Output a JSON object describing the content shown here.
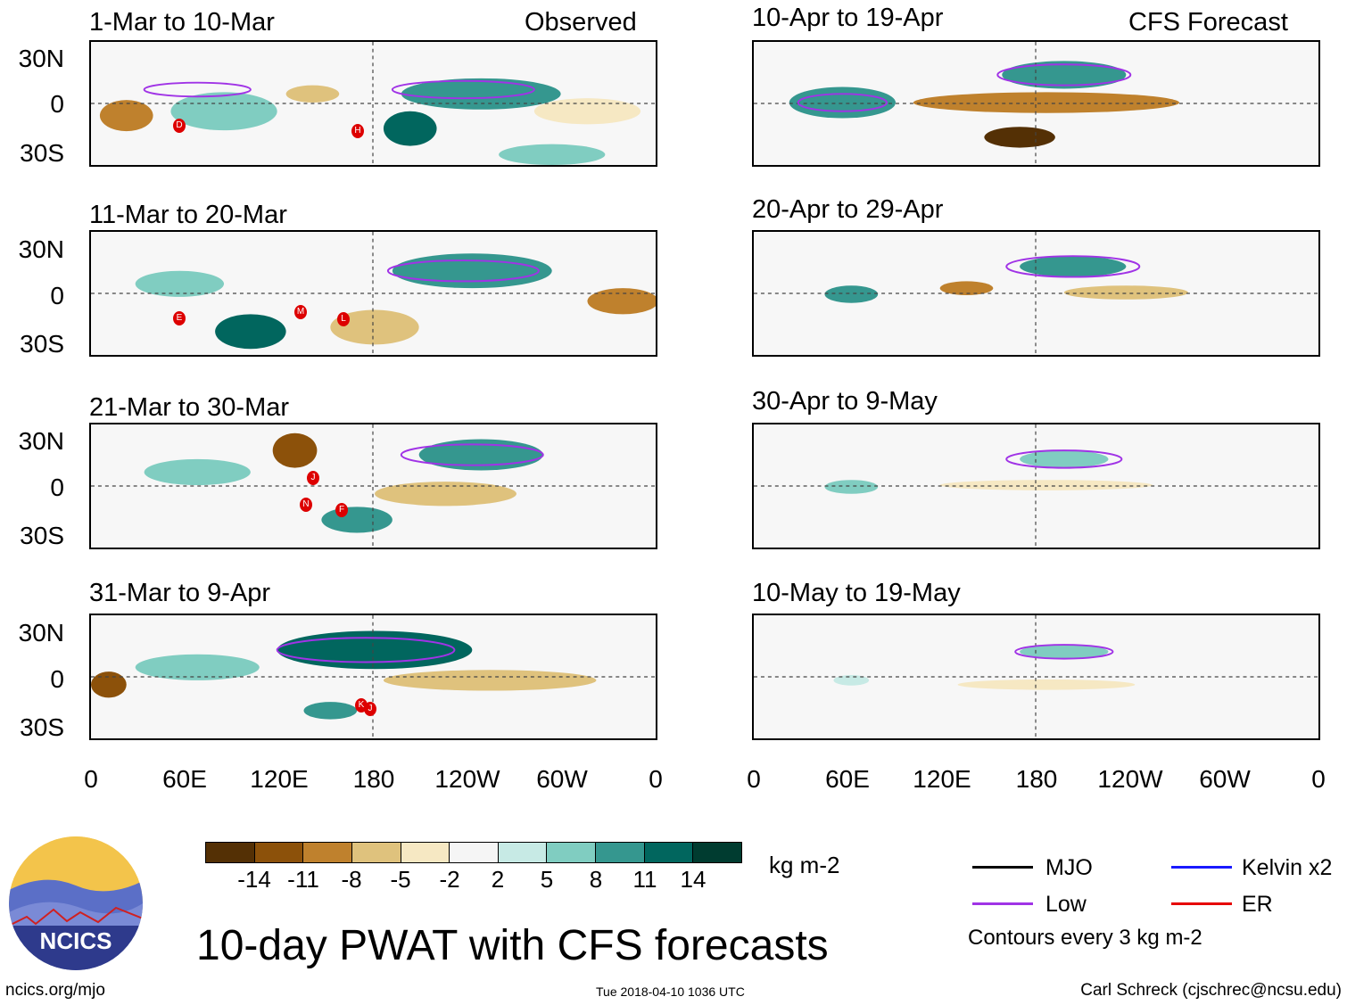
{
  "observed_label": "Observed",
  "forecast_label": "CFS Forecast",
  "panels_observed": [
    {
      "title": "1-Mar to 10-Mar",
      "storms": [
        "D",
        "H"
      ]
    },
    {
      "title": "11-Mar to 20-Mar",
      "storms": [
        "E",
        "M",
        "L"
      ]
    },
    {
      "title": "21-Mar to 30-Mar",
      "storms": [
        "J",
        "N",
        "F"
      ]
    },
    {
      "title": "31-Mar to 9-Apr",
      "storms": [
        "K",
        "J"
      ]
    }
  ],
  "panels_forecast": [
    {
      "title": "10-Apr to 19-Apr"
    },
    {
      "title": "20-Apr to 29-Apr"
    },
    {
      "title": "30-Apr to 9-May"
    },
    {
      "title": "10-May to 19-May"
    }
  ],
  "lat_labels": [
    "30N",
    "0",
    "30S"
  ],
  "lon_labels": [
    "0",
    "60E",
    "120E",
    "180",
    "120W",
    "60W",
    "0"
  ],
  "colorbar": {
    "colors": [
      "#543005",
      "#8c510a",
      "#bf812d",
      "#dfc27d",
      "#f6e8c3",
      "#f5f5f5",
      "#c7eae5",
      "#80cdc1",
      "#35978f",
      "#01665e",
      "#003c30"
    ],
    "ticks": [
      "-14",
      "-11",
      "-8",
      "-5",
      "-2",
      "2",
      "5",
      "8",
      "11",
      "14"
    ],
    "units": "kg m-2"
  },
  "legend": {
    "items": [
      {
        "label": "MJO",
        "color": "#000000"
      },
      {
        "label": "Kelvin x2",
        "color": "#1a1aff"
      },
      {
        "label": "Low",
        "color": "#a033e6"
      },
      {
        "label": "ER",
        "color": "#e60000"
      }
    ],
    "note": "Contours every 3 kg m-2"
  },
  "logo_text": "NCICS",
  "main_title": "10-day PWAT with CFS forecasts",
  "footer": {
    "website": "ncics.org/mjo",
    "timestamp": "Tue 2018-04-10 1036 UTC",
    "author": "Carl Schreck (cjschrec@ncsu.edu)"
  }
}
